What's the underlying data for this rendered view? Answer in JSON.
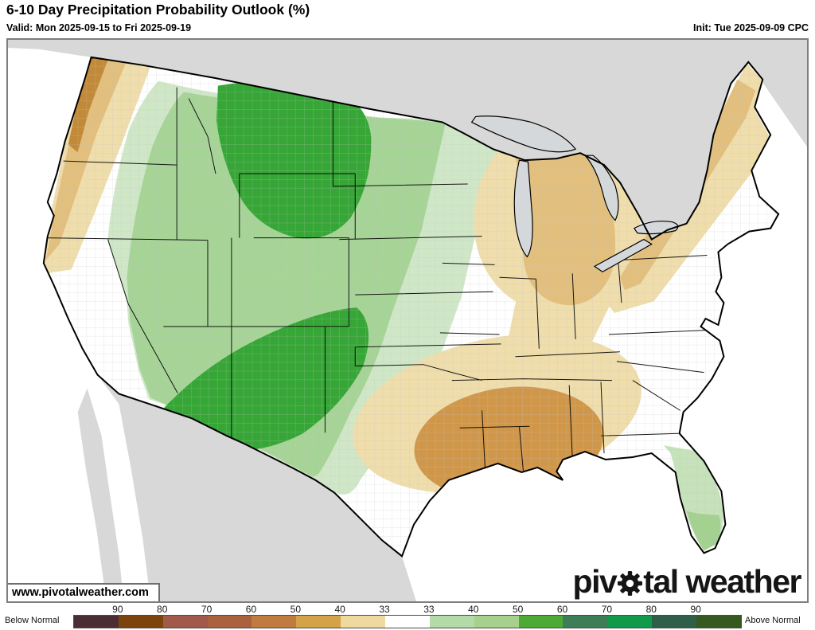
{
  "header": {
    "title": "6-10 Day Precipitation Probability Outlook (%)",
    "valid_label": "Valid: Mon 2025-09-15 to Fri 2025-09-19",
    "init_label": "Init: Tue 2025-09-09 CPC"
  },
  "map": {
    "watermark": "www.pivotalweather.com",
    "logo_text_1": "piv",
    "logo_text_2": "tal weather",
    "regions": [
      {
        "area": "Pacific Northwest coast (WA/OR/far NW CA)",
        "category": "Below Normal",
        "probability_pct": "33-50"
      },
      {
        "area": "Inland West: E WA, E OR, NV, ID, UT, MT, WY, CO, AZ, NM, W Dakotas, W TX",
        "category": "Above Normal",
        "probability_pct": "33-50"
      },
      {
        "area": "E Montana / Wyoming core",
        "category": "Above Normal",
        "probability_pct": "50-60"
      },
      {
        "area": "Arizona / New Mexico core",
        "category": "Above Normal",
        "probability_pct": "50-60"
      },
      {
        "area": "Minnesota-Iowa band",
        "category": "Above Normal",
        "probability_pct": "33-40"
      },
      {
        "area": "Central / South Florida",
        "category": "Above Normal",
        "probability_pct": "33-40"
      },
      {
        "area": "South Florida tip",
        "category": "Above Normal",
        "probability_pct": "40-50"
      },
      {
        "area": "Gulf South: E TX, OK, AR, LA, MS, AL, TN, KY, OH valley",
        "category": "Below Normal",
        "probability_pct": "33-40"
      },
      {
        "area": "Louisiana / Mississippi / E Texas core",
        "category": "Below Normal",
        "probability_pct": "40-50"
      },
      {
        "area": "Great Lakes / Michigan / N Ohio core",
        "category": "Below Normal",
        "probability_pct": "40-50"
      },
      {
        "area": "Upstate NY / VT / NH / Maine band",
        "category": "Below Normal",
        "probability_pct": "33-50"
      }
    ]
  },
  "colorbar": {
    "below_label": "Below Normal",
    "above_label": "Above Normal",
    "boundaries": [
      "90",
      "80",
      "70",
      "60",
      "50",
      "40",
      "33",
      "33",
      "40",
      "50",
      "60",
      "70",
      "80",
      "90"
    ],
    "segments": [
      {
        "range": "below >=90",
        "color": "#4b2e34"
      },
      {
        "range": "below 80-90",
        "color": "#7c440c"
      },
      {
        "range": "below 70-80",
        "color": "#a15a49"
      },
      {
        "range": "below 60-70",
        "color": "#aa613e"
      },
      {
        "range": "below 50-60",
        "color": "#c07b41"
      },
      {
        "range": "below 40-50",
        "color": "#d4a347"
      },
      {
        "range": "below 33-40",
        "color": "#eed9a1"
      },
      {
        "range": "normal 33-33",
        "color": "#ffffff"
      },
      {
        "range": "above 33-40",
        "color": "#b3daa7"
      },
      {
        "range": "above 40-50",
        "color": "#a5d18c"
      },
      {
        "range": "above 50-60",
        "color": "#4daa35"
      },
      {
        "range": "above 60-70",
        "color": "#3d7e57"
      },
      {
        "range": "above 70-80",
        "color": "#109a49"
      },
      {
        "range": "above 80-90",
        "color": "#2d5f49"
      },
      {
        "range": "above >=90",
        "color": "#36591f"
      }
    ]
  },
  "palette": {
    "non_us_land": "#d8d8d8",
    "lake": "#d5d8da",
    "ocean": "#ffffff",
    "us_land": "#ffffff",
    "outline": "#000000",
    "county_line": "#c4c4c4",
    "tan33": "#efddab",
    "tan40": "#e2bf7d",
    "tan50": "#d0974a",
    "tan60": "#c28a38",
    "green33": "#cfe7c6",
    "green40": "#a6d496",
    "green50": "#36a636",
    "fl_green33": "#c5e2ba",
    "fl_green40": "#a3d18f"
  },
  "chart_data": {
    "type": "heatmap",
    "title": "6-10 Day Precipitation Probability Outlook (%)",
    "legend_position": "bottom",
    "legend_below_label": "Below Normal",
    "legend_above_label": "Above Normal",
    "legend_boundaries": [
      90,
      80,
      70,
      60,
      50,
      40,
      33,
      33,
      40,
      50,
      60,
      70,
      80,
      90
    ],
    "legend_colors": [
      "#4b2e34",
      "#7c440c",
      "#a15a49",
      "#aa613e",
      "#c07b41",
      "#d4a347",
      "#eed9a1",
      "#ffffff",
      "#b3daa7",
      "#a5d18c",
      "#4daa35",
      "#3d7e57",
      "#109a49",
      "#2d5f49",
      "#36591f"
    ]
  }
}
